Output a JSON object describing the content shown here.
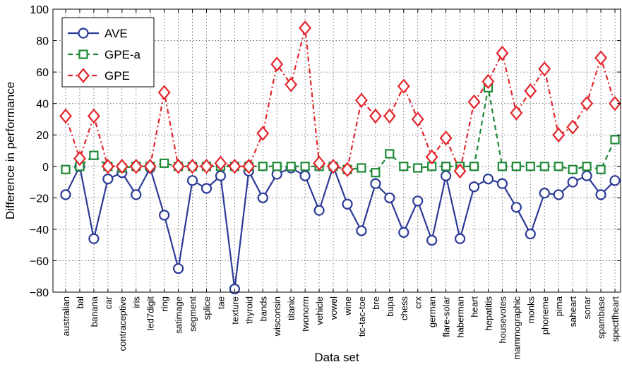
{
  "chart_data": {
    "type": "line",
    "xlabel": "Data set",
    "ylabel": "Difference in performance",
    "ylim": [
      -80,
      100
    ],
    "yticks": [
      -80,
      -60,
      -40,
      -20,
      0,
      20,
      40,
      60,
      80,
      100
    ],
    "grid": "dotted",
    "legend": "top-left",
    "categories": [
      "australian",
      "bal",
      "banana",
      "car",
      "contraceptive",
      "iris",
      "led7digit",
      "ring",
      "satimage",
      "segment",
      "splice",
      "tae",
      "texture",
      "thyroid",
      "bands",
      "wisconsin",
      "titanic",
      "twonorm",
      "vehicle",
      "vowel",
      "wine",
      "tic-tac-toe",
      "bre",
      "bupa",
      "chess",
      "crx",
      "german",
      "flare-solar",
      "haberman",
      "heart",
      "hepatitis",
      "housevotes",
      "mammographic",
      "monks",
      "phoneme",
      "pima",
      "saheart",
      "sonar",
      "spambase",
      "spectfheart"
    ],
    "series": [
      {
        "name": "AVE",
        "color": "#2b3a97",
        "marker": "circle",
        "dash": "solid",
        "values": [
          -18,
          0,
          -46,
          -8,
          -4,
          -18,
          -1,
          -31,
          -65,
          -9,
          -14,
          -6,
          -78,
          -3,
          -20,
          -5,
          -1,
          -6,
          -28,
          0,
          -24,
          -41,
          -11,
          -20,
          -42,
          -22,
          -47,
          -6,
          -46,
          -13,
          -8,
          -11,
          -26,
          -43,
          -17,
          -18,
          -10,
          -6,
          -18,
          -9
        ]
      },
      {
        "name": "GPE-a",
        "color": "#1e8a37",
        "marker": "square",
        "dash": "dashed",
        "values": [
          -2,
          0,
          7,
          0,
          -1,
          0,
          0,
          2,
          0,
          0,
          0,
          0,
          0,
          0,
          0,
          0,
          0,
          0,
          0,
          0,
          -2,
          -1,
          -4,
          8,
          0,
          -1,
          0,
          0,
          0,
          0,
          50,
          0,
          0,
          0,
          0,
          0,
          -2,
          0,
          -2,
          17
        ]
      },
      {
        "name": "GPE",
        "color": "#e3262c",
        "marker": "diamond",
        "dash": "dashdot",
        "values": [
          32,
          5,
          32,
          0,
          0,
          0,
          0,
          47,
          0,
          0,
          0,
          2,
          0,
          0,
          21,
          65,
          52,
          88,
          2,
          0,
          -2,
          42,
          32,
          32,
          51,
          30,
          6,
          18,
          -3,
          41,
          54,
          72,
          34,
          48,
          62,
          20,
          25,
          40,
          69,
          40
        ]
      }
    ]
  }
}
